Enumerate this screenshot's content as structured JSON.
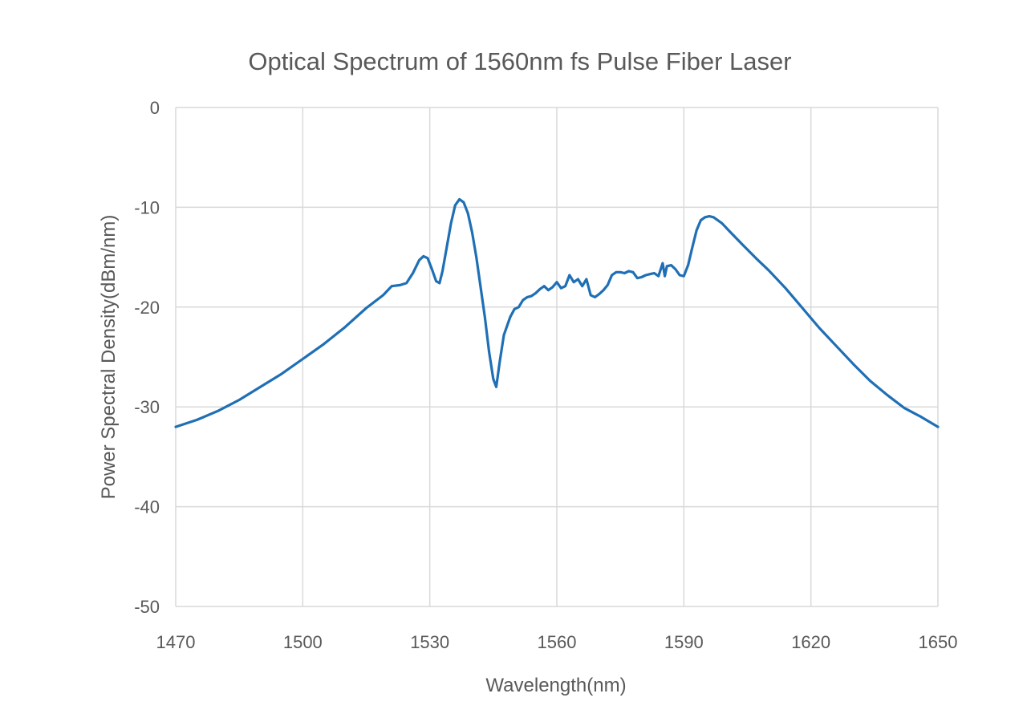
{
  "chart_data": {
    "type": "line",
    "title": "Optical Spectrum of 1560nm fs Pulse Fiber Laser",
    "xlabel": "Wavelength(nm)",
    "ylabel": "Power Spectral Density(dBm/nm)",
    "xlim": [
      1470,
      1650
    ],
    "ylim": [
      -50,
      0
    ],
    "x_ticks": [
      1470,
      1500,
      1530,
      1560,
      1590,
      1620,
      1650
    ],
    "y_ticks": [
      0,
      -10,
      -20,
      -30,
      -40,
      -50
    ],
    "grid": true,
    "legend": "none",
    "series_color": "#1f6fb5",
    "series": [
      {
        "points": [
          [
            1470,
            -32.0
          ],
          [
            1475,
            -31.3
          ],
          [
            1480,
            -30.4
          ],
          [
            1485,
            -29.3
          ],
          [
            1490,
            -28.0
          ],
          [
            1495,
            -26.7
          ],
          [
            1500,
            -25.2
          ],
          [
            1505,
            -23.7
          ],
          [
            1510,
            -22.0
          ],
          [
            1515,
            -20.1
          ],
          [
            1519,
            -18.8
          ],
          [
            1521,
            -17.9
          ],
          [
            1523,
            -17.8
          ],
          [
            1524.5,
            -17.6
          ],
          [
            1526,
            -16.6
          ],
          [
            1527.5,
            -15.3
          ],
          [
            1528.5,
            -14.9
          ],
          [
            1529.5,
            -15.1
          ],
          [
            1530.5,
            -16.2
          ],
          [
            1531.5,
            -17.4
          ],
          [
            1532.3,
            -17.6
          ],
          [
            1533,
            -16.4
          ],
          [
            1534,
            -14.0
          ],
          [
            1535,
            -11.6
          ],
          [
            1536,
            -9.8
          ],
          [
            1537,
            -9.2
          ],
          [
            1538,
            -9.5
          ],
          [
            1539,
            -10.6
          ],
          [
            1540,
            -12.5
          ],
          [
            1541,
            -15.0
          ],
          [
            1542,
            -18.0
          ],
          [
            1543,
            -21.0
          ],
          [
            1544,
            -24.5
          ],
          [
            1545,
            -27.2
          ],
          [
            1545.7,
            -28.0
          ],
          [
            1546.5,
            -25.5
          ],
          [
            1547.5,
            -22.8
          ],
          [
            1549,
            -21.0
          ],
          [
            1550,
            -20.2
          ],
          [
            1551,
            -20.0
          ],
          [
            1552,
            -19.3
          ],
          [
            1553,
            -19.0
          ],
          [
            1554,
            -18.9
          ],
          [
            1555,
            -18.6
          ],
          [
            1556,
            -18.2
          ],
          [
            1557,
            -17.9
          ],
          [
            1558,
            -18.3
          ],
          [
            1559,
            -18.0
          ],
          [
            1560,
            -17.5
          ],
          [
            1561,
            -18.1
          ],
          [
            1562,
            -17.9
          ],
          [
            1563,
            -16.8
          ],
          [
            1564,
            -17.5
          ],
          [
            1565,
            -17.2
          ],
          [
            1566,
            -17.9
          ],
          [
            1567,
            -17.2
          ],
          [
            1568,
            -18.8
          ],
          [
            1569,
            -19.0
          ],
          [
            1570,
            -18.7
          ],
          [
            1571,
            -18.3
          ],
          [
            1572,
            -17.8
          ],
          [
            1573,
            -16.8
          ],
          [
            1574,
            -16.5
          ],
          [
            1575,
            -16.5
          ],
          [
            1576,
            -16.6
          ],
          [
            1577,
            -16.4
          ],
          [
            1578,
            -16.5
          ],
          [
            1579,
            -17.1
          ],
          [
            1580,
            -17.0
          ],
          [
            1581,
            -16.8
          ],
          [
            1582,
            -16.7
          ],
          [
            1583,
            -16.6
          ],
          [
            1584,
            -16.9
          ],
          [
            1585,
            -15.6
          ],
          [
            1585.5,
            -16.9
          ],
          [
            1586,
            -15.9
          ],
          [
            1587,
            -15.8
          ],
          [
            1588,
            -16.2
          ],
          [
            1589,
            -16.8
          ],
          [
            1590,
            -16.9
          ],
          [
            1591,
            -15.8
          ],
          [
            1592,
            -14.0
          ],
          [
            1593,
            -12.3
          ],
          [
            1594,
            -11.3
          ],
          [
            1595,
            -11.0
          ],
          [
            1596,
            -10.9
          ],
          [
            1597,
            -11.0
          ],
          [
            1599,
            -11.6
          ],
          [
            1601,
            -12.5
          ],
          [
            1604,
            -13.8
          ],
          [
            1607,
            -15.1
          ],
          [
            1610,
            -16.3
          ],
          [
            1614,
            -18.1
          ],
          [
            1618,
            -20.1
          ],
          [
            1622,
            -22.1
          ],
          [
            1626,
            -23.9
          ],
          [
            1630,
            -25.7
          ],
          [
            1634,
            -27.4
          ],
          [
            1638,
            -28.8
          ],
          [
            1642,
            -30.1
          ],
          [
            1646,
            -31.0
          ],
          [
            1650,
            -32.0
          ]
        ]
      }
    ]
  }
}
